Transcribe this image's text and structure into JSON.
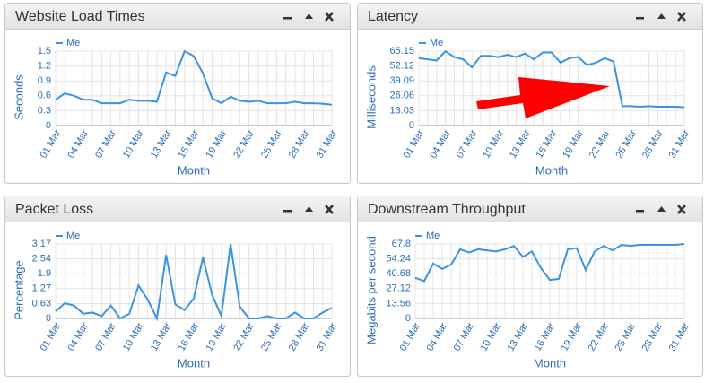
{
  "chart_data": [
    {
      "type": "line",
      "title": "Website Load Times",
      "ylabel": "Seconds",
      "xlabel": "Month",
      "grid": true,
      "categories": [
        "01 Mar",
        null,
        null,
        "04 Mar",
        null,
        null,
        "07 Mar",
        null,
        null,
        "10 Mar",
        null,
        null,
        "13 Mar",
        null,
        null,
        "16 Mar",
        null,
        null,
        "19 Mar",
        null,
        null,
        "22 Mar",
        null,
        null,
        "25 Mar",
        null,
        null,
        "28 Mar",
        null,
        null,
        "31 Mar"
      ],
      "series": [
        {
          "name": "Me",
          "color": "#3a94e0",
          "values": [
            0.52,
            0.65,
            0.6,
            0.52,
            0.52,
            0.45,
            0.45,
            0.45,
            0.52,
            0.5,
            0.5,
            0.48,
            1.07,
            1.0,
            1.5,
            1.4,
            1.05,
            0.55,
            0.45,
            0.58,
            0.5,
            0.48,
            0.5,
            0.45,
            0.45,
            0.45,
            0.48,
            0.45,
            0.45,
            0.44,
            0.42
          ]
        }
      ],
      "ylim": [
        0,
        1.5
      ],
      "yticks": [
        0,
        0.3,
        0.6,
        0.9,
        1.2,
        1.5
      ]
    },
    {
      "type": "line",
      "title": "Latency",
      "ylabel": "Milliseconds",
      "xlabel": "Month",
      "grid": true,
      "categories": [
        "01 Mar",
        null,
        null,
        "04 Mar",
        null,
        null,
        "07 Mar",
        null,
        null,
        "10 Mar",
        null,
        null,
        "13 Mar",
        null,
        null,
        "16 Mar",
        null,
        null,
        "19 Mar",
        null,
        null,
        "22 Mar",
        null,
        null,
        "25 Mar",
        null,
        null,
        "28 Mar",
        null,
        null,
        "31 Mar"
      ],
      "series": [
        {
          "name": "Me",
          "color": "#3a94e0",
          "values": [
            59,
            58,
            57,
            65,
            60,
            58,
            51,
            61,
            61,
            60,
            62,
            60,
            63,
            58,
            64,
            64,
            55,
            59,
            60,
            53,
            55,
            59,
            56,
            17,
            17,
            16.5,
            17,
            16.5,
            16.5,
            16.5,
            16
          ]
        }
      ],
      "ylim": [
        0,
        65.15
      ],
      "yticks": [
        0,
        13.03,
        26.06,
        39.09,
        52.12,
        65.15
      ]
    },
    {
      "type": "line",
      "title": "Packet Loss",
      "ylabel": "Percentage",
      "xlabel": "Month",
      "grid": true,
      "categories": [
        "01 Mar",
        null,
        null,
        "04 Mar",
        null,
        null,
        "07 Mar",
        null,
        null,
        "10 Mar",
        null,
        null,
        "13 Mar",
        null,
        null,
        "16 Mar",
        null,
        null,
        "19 Mar",
        null,
        null,
        "22 Mar",
        null,
        null,
        "25 Mar",
        null,
        null,
        "28 Mar",
        null,
        null,
        "31 Mar"
      ],
      "series": [
        {
          "name": "Me",
          "color": "#3a94e0",
          "values": [
            0.3,
            0.65,
            0.55,
            0.2,
            0.25,
            0.1,
            0.55,
            0,
            0.2,
            1.4,
            0.8,
            0,
            2.7,
            0.6,
            0.35,
            0.85,
            2.6,
            1.0,
            0.1,
            3.17,
            0.5,
            0,
            0,
            0.1,
            0,
            0,
            0.25,
            0,
            0,
            0.25,
            0.45
          ]
        }
      ],
      "ylim": [
        0,
        3.17
      ],
      "yticks": [
        0,
        0.63,
        1.27,
        1.9,
        2.54,
        3.17
      ]
    },
    {
      "type": "line",
      "title": "Downstream Throughput",
      "ylabel": "Megabits per second",
      "xlabel": "Month",
      "grid": true,
      "categories": [
        "01 Mar",
        null,
        null,
        "04 Mar",
        null,
        null,
        "07 Mar",
        null,
        null,
        "10 Mar",
        null,
        null,
        "13 Mar",
        null,
        null,
        "16 Mar",
        null,
        null,
        "19 Mar",
        null,
        null,
        "22 Mar",
        null,
        null,
        "25 Mar",
        null,
        null,
        "28 Mar",
        null,
        null,
        "31 Mar"
      ],
      "series": [
        {
          "name": "Me",
          "color": "#3a94e0",
          "values": [
            37,
            34,
            50,
            45,
            49,
            63,
            60,
            63,
            62,
            61,
            63,
            66,
            56,
            61,
            46,
            35,
            36,
            63,
            64,
            44,
            61,
            66,
            62,
            67,
            66,
            67,
            67,
            67,
            67,
            67,
            67.8
          ]
        }
      ],
      "ylim": [
        0,
        67.8
      ],
      "yticks": [
        0,
        13.56,
        27.12,
        40.68,
        54.24,
        67.8
      ]
    }
  ]
}
